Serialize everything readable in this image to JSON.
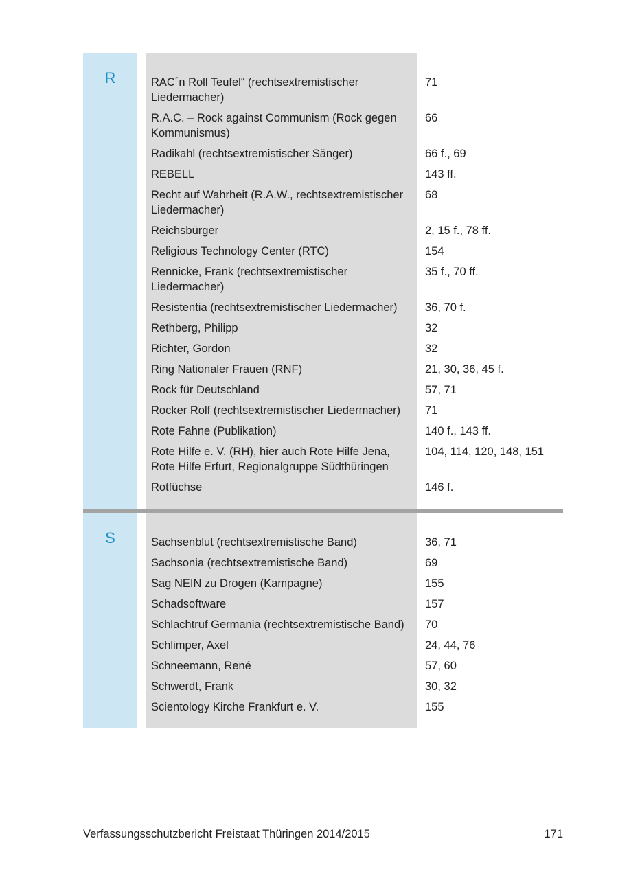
{
  "sections": [
    {
      "letter": "R",
      "entries": [
        {
          "term": "RAC´n Roll Teufel“ (rechtsextremistischer Liedermacher)",
          "pages": "71"
        },
        {
          "term": "R.A.C. – Rock against Communism (Rock gegen Kommunismus)",
          "pages": "66"
        },
        {
          "term": "Radikahl (rechtsextremistischer Sänger)",
          "pages": "66 f., 69"
        },
        {
          "term": "REBELL",
          "pages": "143 ff."
        },
        {
          "term": "Recht auf Wahrheit (R.A.W., rechtsextremistischer Liedermacher)",
          "pages": "68"
        },
        {
          "term": "Reichsbürger",
          "pages": "2, 15 f., 78 ff."
        },
        {
          "term": "Religious Technology Center (RTC)",
          "pages": "154"
        },
        {
          "term": "Rennicke, Frank (rechtsextremistischer Liedermacher)",
          "pages": "35 f., 70 ff."
        },
        {
          "term": "Resistentia (rechtsextremistischer Liedermacher)",
          "pages": "36, 70 f."
        },
        {
          "term": "Rethberg, Philipp",
          "pages": "32"
        },
        {
          "term": "Richter, Gordon",
          "pages": "32"
        },
        {
          "term": "Ring Nationaler Frauen (RNF)",
          "pages": "21, 30, 36, 45 f."
        },
        {
          "term": "Rock für Deutschland",
          "pages": "57, 71"
        },
        {
          "term": "Rocker Rolf (rechtsextremistischer Liedermacher)",
          "pages": "71"
        },
        {
          "term": "Rote Fahne (Publikation)",
          "pages": "140 f., 143 ff."
        },
        {
          "term": "Rote Hilfe e. V. (RH), hier auch Rote Hilfe Jena, Rote Hilfe Erfurt, Regionalgruppe Südthüringen",
          "pages": "104, 114, 120, 148, 151"
        },
        {
          "term": "Rotfüchse",
          "pages": "146 f."
        }
      ]
    },
    {
      "letter": "S",
      "entries": [
        {
          "term": "Sachsenblut (rechtsextremistische Band)",
          "pages": "36, 71"
        },
        {
          "term": "Sachsonia (rechtsextremistische Band)",
          "pages": "69"
        },
        {
          "term": "Sag NEIN zu Drogen (Kampagne)",
          "pages": "155"
        },
        {
          "term": "Schadsoftware",
          "pages": "157"
        },
        {
          "term": "Schlachtruf Germania (rechtsextremistische Band)",
          "pages": "70"
        },
        {
          "term": "Schlimper, Axel",
          "pages": "24, 44, 76"
        },
        {
          "term": "Schneemann, René",
          "pages": "57, 60"
        },
        {
          "term": "Schwerdt, Frank",
          "pages": "30, 32"
        },
        {
          "term": "Scientology Kirche Frankfurt e. V.",
          "pages": "155"
        }
      ]
    }
  ],
  "footer": {
    "title": "Verfassungsschutzbericht Freistaat Thüringen 2014/2015",
    "page": "171"
  }
}
